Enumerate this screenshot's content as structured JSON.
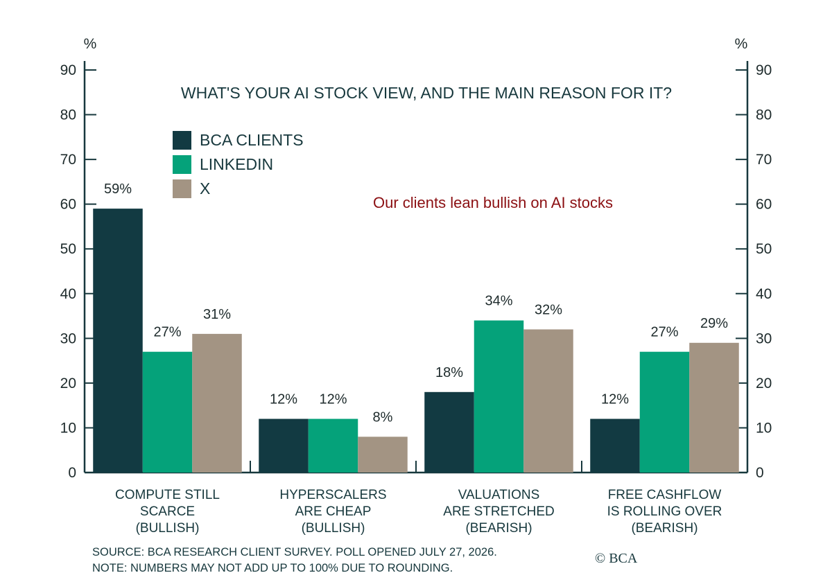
{
  "colors": {
    "axis": "#17383d",
    "bca": "#123a42",
    "linkedin": "#05a27a",
    "x": "#a39483",
    "annotation": "#8b0f12",
    "text": "#17383d"
  },
  "chart_data": {
    "type": "bar",
    "title": "WHAT'S YOUR AI STOCK VIEW, AND THE MAIN REASON FOR IT?",
    "y_unit": "%",
    "ylim": [
      0,
      90
    ],
    "yticks": [
      0,
      10,
      20,
      30,
      40,
      50,
      60,
      70,
      80,
      90
    ],
    "dual_y_axis": true,
    "legend_position": "top-left",
    "categories": [
      [
        "COMPUTE STILL",
        "SCARCE",
        "(BULLISH)"
      ],
      [
        "HYPERSCALERS",
        "ARE CHEAP",
        "(BULLISH)"
      ],
      [
        "VALUATIONS",
        "ARE STRETCHED",
        "(BEARISH)"
      ],
      [
        "FREE CASHFLOW",
        "IS ROLLING OVER",
        "(BEARISH)"
      ]
    ],
    "series": [
      {
        "name": "BCA CLIENTS",
        "color": "#123a42",
        "values": [
          59,
          12,
          18,
          12
        ],
        "labels": [
          "59%",
          "12%",
          "18%",
          "12%"
        ]
      },
      {
        "name": "LINKEDIN",
        "color": "#05a27a",
        "values": [
          27,
          12,
          34,
          27
        ],
        "labels": [
          "27%",
          "12%",
          "34%",
          "27%"
        ]
      },
      {
        "name": "X",
        "color": "#a39483",
        "values": [
          31,
          8,
          32,
          29
        ],
        "labels": [
          "31%",
          "8%",
          "32%",
          "29%"
        ]
      }
    ],
    "annotation": "Our clients lean bullish on AI stocks"
  },
  "footer": {
    "source": "SOURCE: BCA RESEARCH CLIENT SURVEY. POLL OPENED JULY 27, 2026.",
    "note": "NOTE: NUMBERS MAY NOT ADD UP TO 100% DUE TO ROUNDING."
  },
  "copyright": "© BCA"
}
